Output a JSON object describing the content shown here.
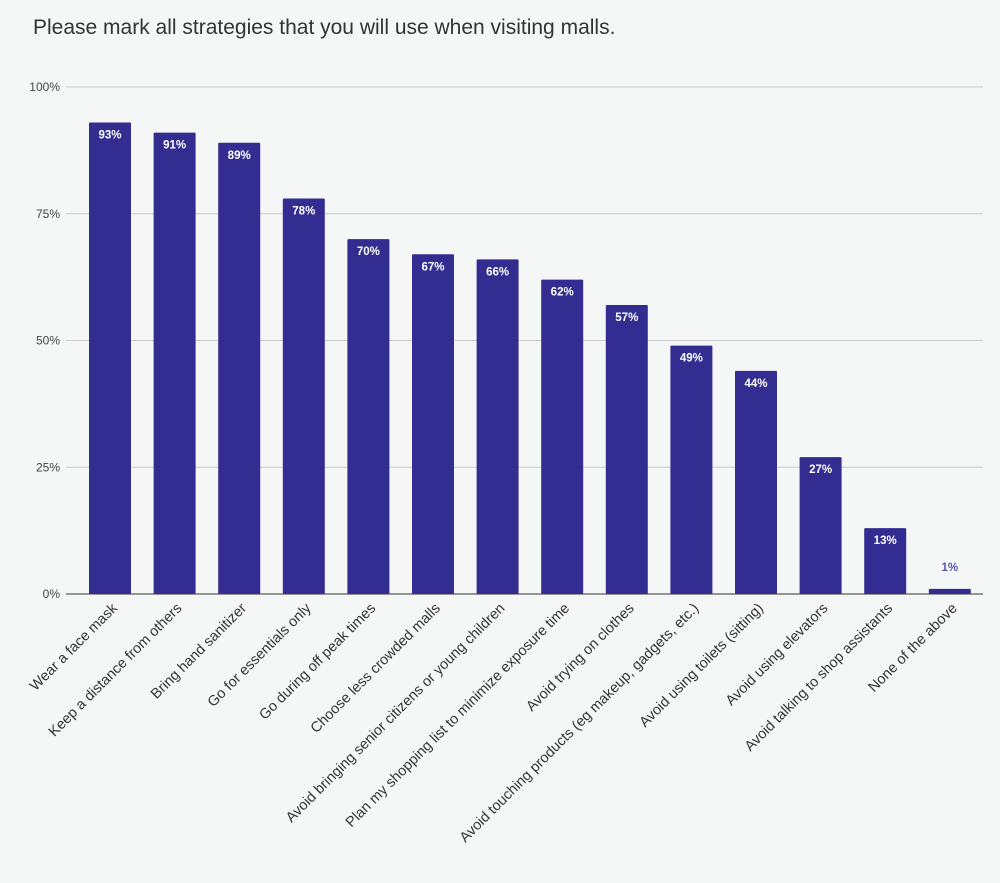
{
  "chart_data": {
    "type": "bar",
    "title": "Please mark all strategies that you will use when visiting malls.",
    "xlabel": "",
    "ylabel": "",
    "ylim": [
      0,
      100
    ],
    "yticks": [
      {
        "value": 0,
        "label": "0%"
      },
      {
        "value": 25,
        "label": "25%"
      },
      {
        "value": 50,
        "label": "50%"
      },
      {
        "value": 75,
        "label": "75%"
      },
      {
        "value": 100,
        "label": "100%"
      }
    ],
    "grid": true,
    "bar_color": "#332d91",
    "categories": [
      "Wear a face mask",
      "Keep a distance from others",
      "Bring hand sanitizer",
      "Go for essentials only",
      "Go during off peak times",
      "Choose less crowded malls",
      "Avoid bringing senior citizens or young children",
      "Plan my shopping list to minimize exposure time",
      "Avoid trying on clothes",
      "Avoid touching products (eg makeup, gadgets, etc.)",
      "Avoid using toilets (sitting)",
      "Avoid using elevators",
      "Avoid talking to shop assistants",
      "None of the above"
    ],
    "values": [
      93,
      91,
      89,
      78,
      70,
      67,
      66,
      62,
      57,
      49,
      44,
      27,
      13,
      1
    ],
    "data_labels": [
      "93%",
      "91%",
      "89%",
      "78%",
      "70%",
      "67%",
      "66%",
      "62%",
      "57%",
      "49%",
      "44%",
      "27%",
      "13%",
      "1%"
    ]
  }
}
